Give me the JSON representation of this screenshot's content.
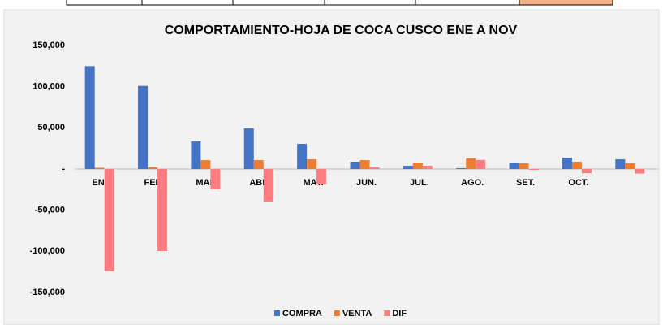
{
  "chart_data": {
    "type": "bar",
    "title": "COMPORTAMIENTO-HOJA DE COCA CUSCO ENE A NOV",
    "categories": [
      "ENE",
      "FEB.",
      "MAR.",
      "ABR.",
      "MAY.",
      "JUN.",
      "JUL.",
      "AGO.",
      "SET.",
      "OCT.",
      null
    ],
    "series": [
      {
        "name": "COMPRA",
        "color": "#4472c4",
        "values": [
          125000,
          101000,
          33500,
          49300,
          30600,
          8900,
          3900,
          1000,
          7900,
          13800,
          11800
        ]
      },
      {
        "name": "VENTA",
        "color": "#ed7d31",
        "values": [
          1500,
          2000,
          10800,
          10800,
          11800,
          10800,
          7900,
          12800,
          6900,
          8900,
          6900
        ]
      },
      {
        "name": "DIF",
        "color": "#ff7c80",
        "values": [
          -124300,
          -99600,
          -24600,
          -39400,
          -18700,
          2000,
          4000,
          11000,
          -1000,
          -5000,
          -5500
        ]
      }
    ],
    "ylim": [
      -150000,
      150000
    ],
    "yticks": [
      {
        "value": 150000,
        "label": "150,000"
      },
      {
        "value": 100000,
        "label": "100,000"
      },
      {
        "value": 50000,
        "label": "50,000"
      },
      {
        "value": 0,
        "label": "-"
      },
      {
        "value": -50000,
        "label": "-50,000"
      },
      {
        "value": -100000,
        "label": "-100,000"
      },
      {
        "value": -150000,
        "label": "-150,000"
      }
    ],
    "grid": false,
    "legend": "bottom"
  }
}
